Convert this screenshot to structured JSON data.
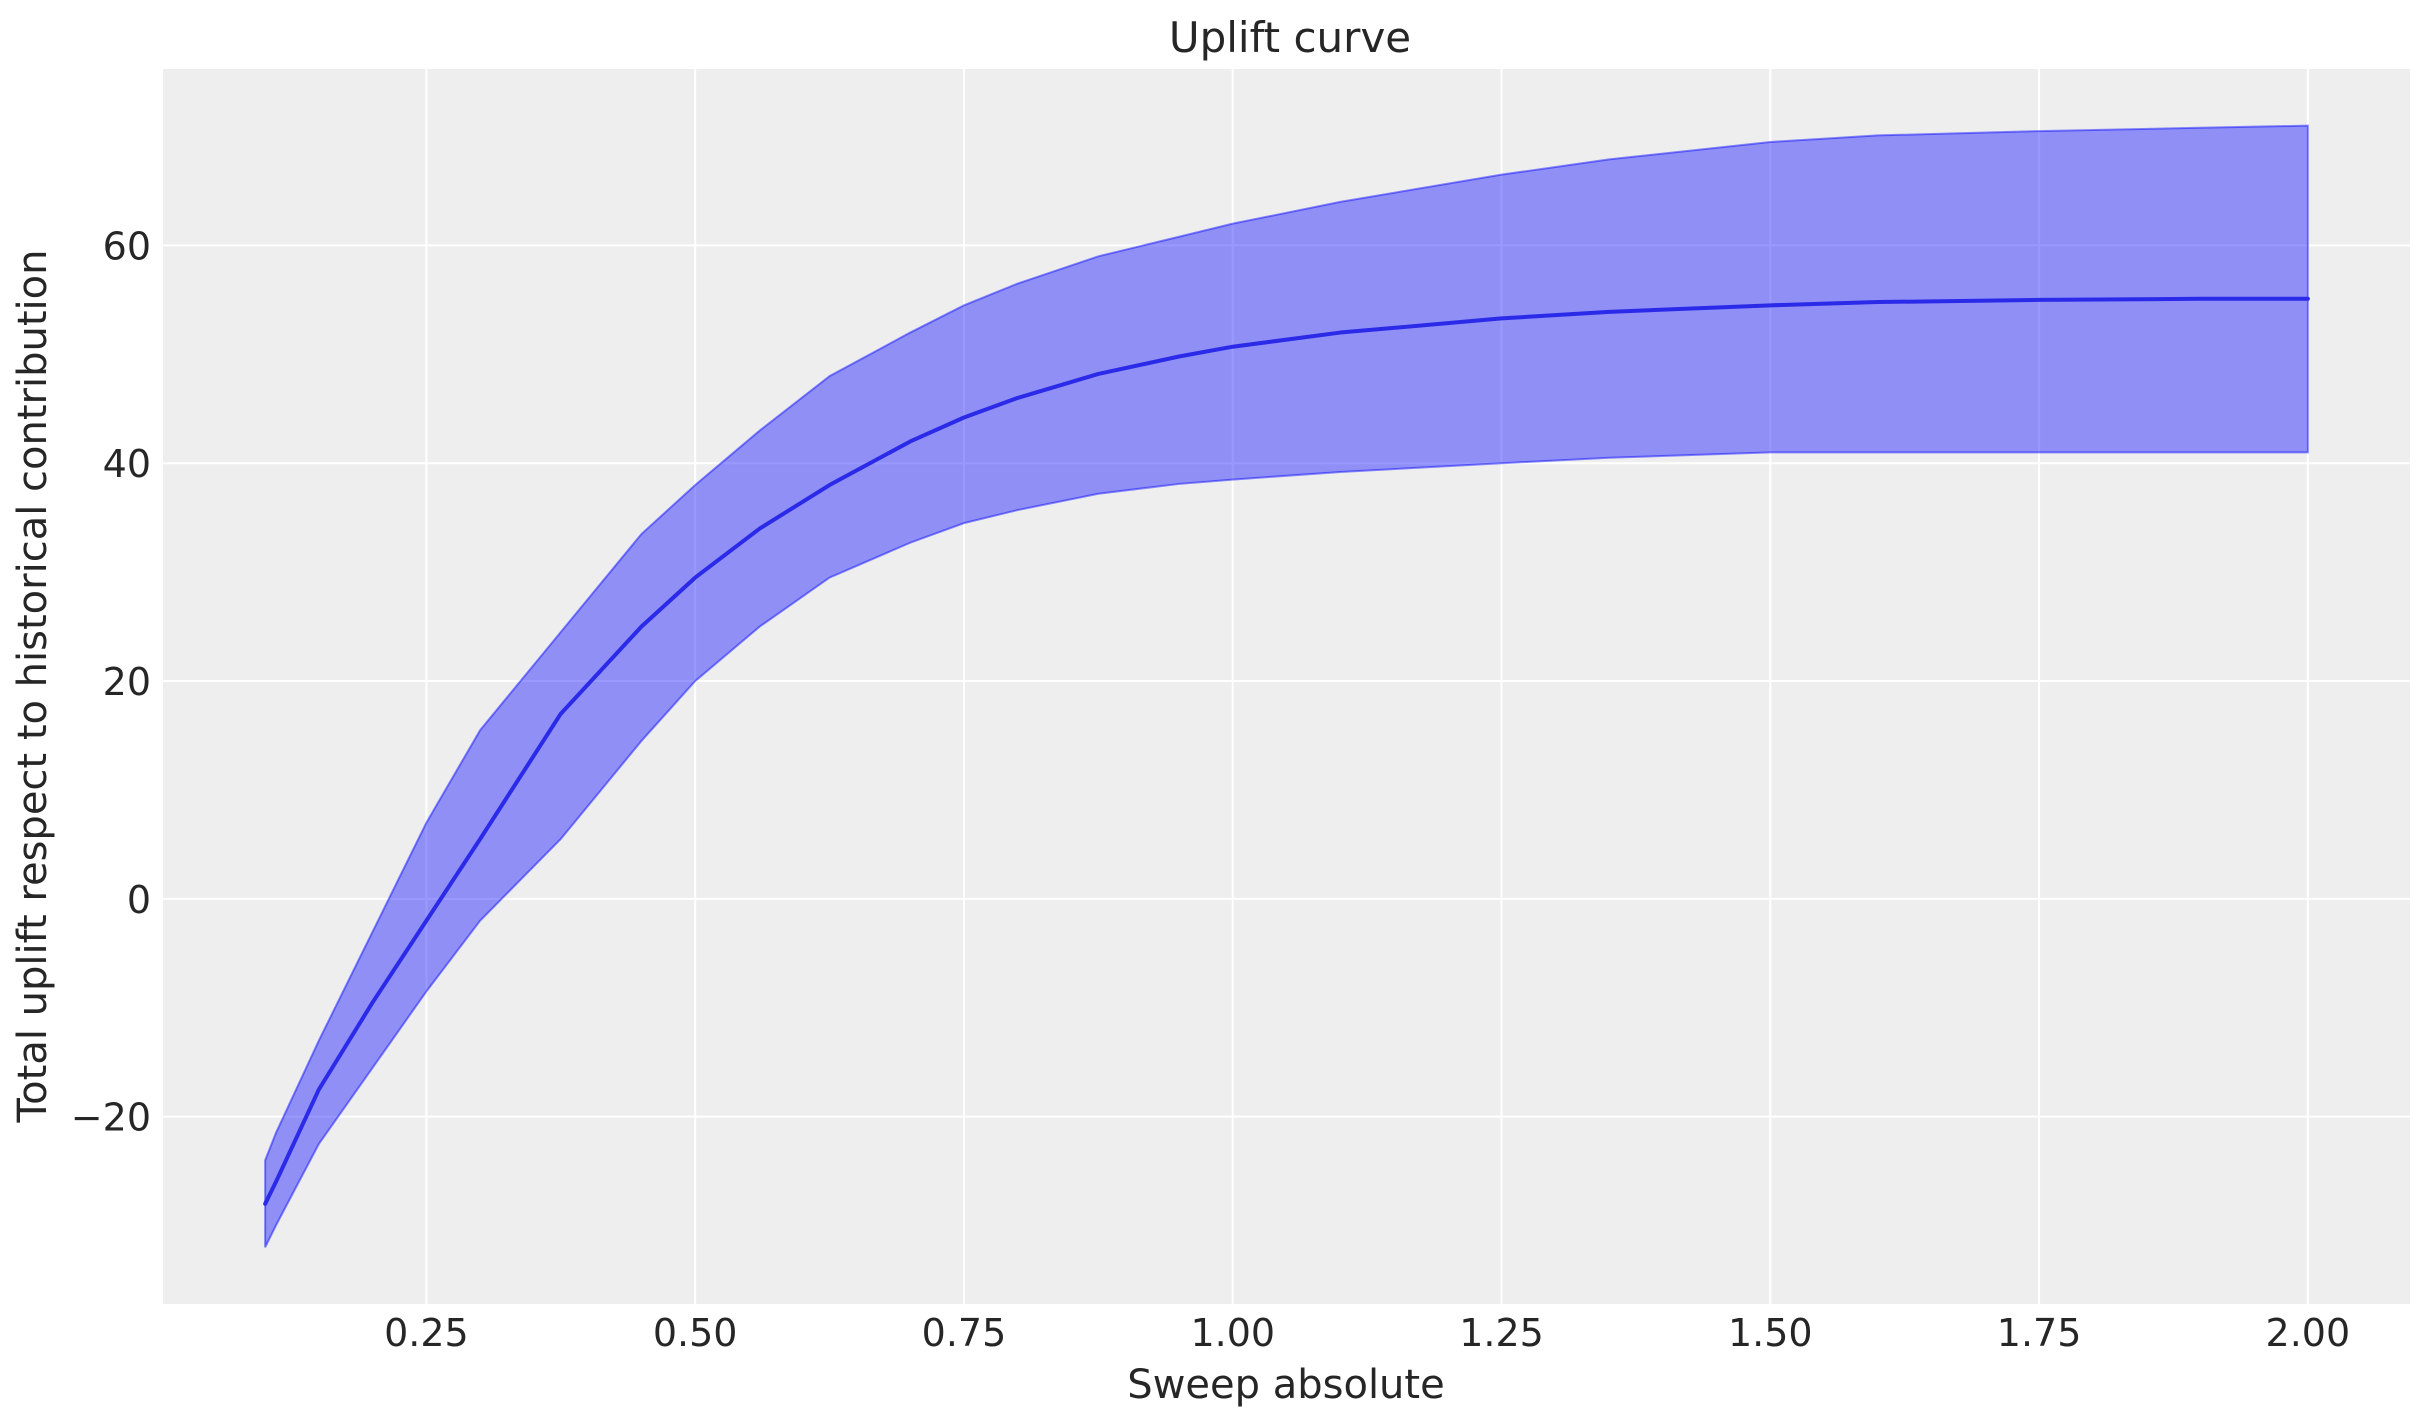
{
  "chart_data": {
    "type": "area",
    "title": "Uplift curve",
    "xlabel": "Sweep absolute",
    "ylabel": "Total uplift respect to historical contribution",
    "xlim": [
      0.005,
      2.095
    ],
    "ylim": [
      -37.2,
      76.2
    ],
    "grid": true,
    "x_ticks": [
      0.25,
      0.5,
      0.75,
      1.0,
      1.25,
      1.5,
      1.75,
      2.0
    ],
    "x_tick_labels": [
      "0.25",
      "0.50",
      "0.75",
      "1.00",
      "1.25",
      "1.50",
      "1.75",
      "2.00"
    ],
    "y_ticks": [
      -20,
      0,
      20,
      40,
      60
    ],
    "y_tick_labels": [
      "−20",
      "0",
      "20",
      "40",
      "60"
    ],
    "colors": {
      "band": "#0000ff",
      "line": "#2a2ae8",
      "background": "#eeeeee",
      "grid": "#ffffff"
    },
    "x": [
      0.1,
      0.11,
      0.15,
      0.2,
      0.25,
      0.3,
      0.375,
      0.45,
      0.5,
      0.56,
      0.625,
      0.7,
      0.75,
      0.8,
      0.875,
      0.95,
      1.0,
      1.1,
      1.25,
      1.35,
      1.5,
      1.6,
      1.75,
      1.9,
      2.0
    ],
    "median": [
      -28,
      -26,
      -17.5,
      -9.5,
      -2,
      5.5,
      17,
      25,
      29.5,
      34,
      38,
      42,
      44.2,
      46,
      48.2,
      49.8,
      50.7,
      52,
      53.3,
      53.9,
      54.5,
      54.8,
      55,
      55.1,
      55.1
    ],
    "upper": [
      -24,
      -21.5,
      -13,
      -3,
      7,
      15.5,
      24.5,
      33.5,
      38,
      43,
      48,
      52,
      54.5,
      56.5,
      59,
      60.8,
      62,
      64,
      66.5,
      67.9,
      69.5,
      70.1,
      70.5,
      70.8,
      71
    ],
    "lower": [
      -32,
      -30,
      -22.5,
      -15.5,
      -8.5,
      -2,
      5.5,
      14.5,
      20,
      25,
      29.5,
      32.7,
      34.5,
      35.7,
      37.2,
      38.1,
      38.5,
      39.2,
      40,
      40.5,
      41,
      41,
      41,
      41,
      41
    ]
  }
}
